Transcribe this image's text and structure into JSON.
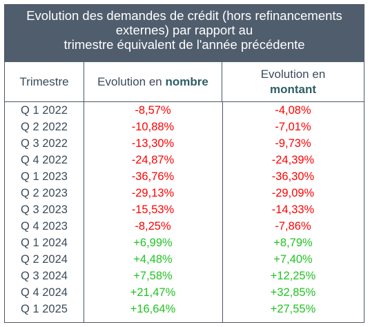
{
  "title_lines": [
    "Evolution des demandes de crédit (hors refinancements",
    "externes) par rapport au",
    "trimestre équivalent de l'année précédente"
  ],
  "headers": {
    "col1": "Trimestre",
    "col2_prefix": "Evolution en ",
    "col2_bold": "nombre",
    "col3_prefix": "Evolution en",
    "col3_bold": "montant"
  },
  "colors": {
    "negative": "#ff0000",
    "positive": "#22c322",
    "title_bg": "#4f5d6d",
    "header_bold": "#2e5e66"
  },
  "chart_data": {
    "type": "table",
    "columns": [
      "Trimestre",
      "Evolution en nombre",
      "Evolution en montant"
    ],
    "rows": [
      {
        "trimestre": "Q 1 2022",
        "nombre": "-8,57%",
        "montant": "-4,08%"
      },
      {
        "trimestre": "Q 2 2022",
        "nombre": "-10,88%",
        "montant": "-7,01%"
      },
      {
        "trimestre": "Q 3 2022",
        "nombre": "-13,30%",
        "montant": "-9,73%"
      },
      {
        "trimestre": "Q 4 2022",
        "nombre": "-24,87%",
        "montant": "-24,39%"
      },
      {
        "trimestre": "Q 1 2023",
        "nombre": "-36,76%",
        "montant": "-36,30%"
      },
      {
        "trimestre": "Q 2 2023",
        "nombre": "-29,13%",
        "montant": "-29,09%"
      },
      {
        "trimestre": "Q 3 2023",
        "nombre": "-15,53%",
        "montant": "-14,33%"
      },
      {
        "trimestre": "Q 4 2023",
        "nombre": "-8,25%",
        "montant": "-7,86%"
      },
      {
        "trimestre": "Q 1 2024",
        "nombre": "+6,99%",
        "montant": "+8,79%"
      },
      {
        "trimestre": "Q 2 2024",
        "nombre": "+4,48%",
        "montant": "+7,40%"
      },
      {
        "trimestre": "Q 3 2024",
        "nombre": "+7,58%",
        "montant": "+12,25%"
      },
      {
        "trimestre": "Q 4 2024",
        "nombre": "+21,47%",
        "montant": "+32,85%"
      },
      {
        "trimestre": "Q 1 2025",
        "nombre": "+16,64%",
        "montant": "+27,55%"
      }
    ]
  }
}
